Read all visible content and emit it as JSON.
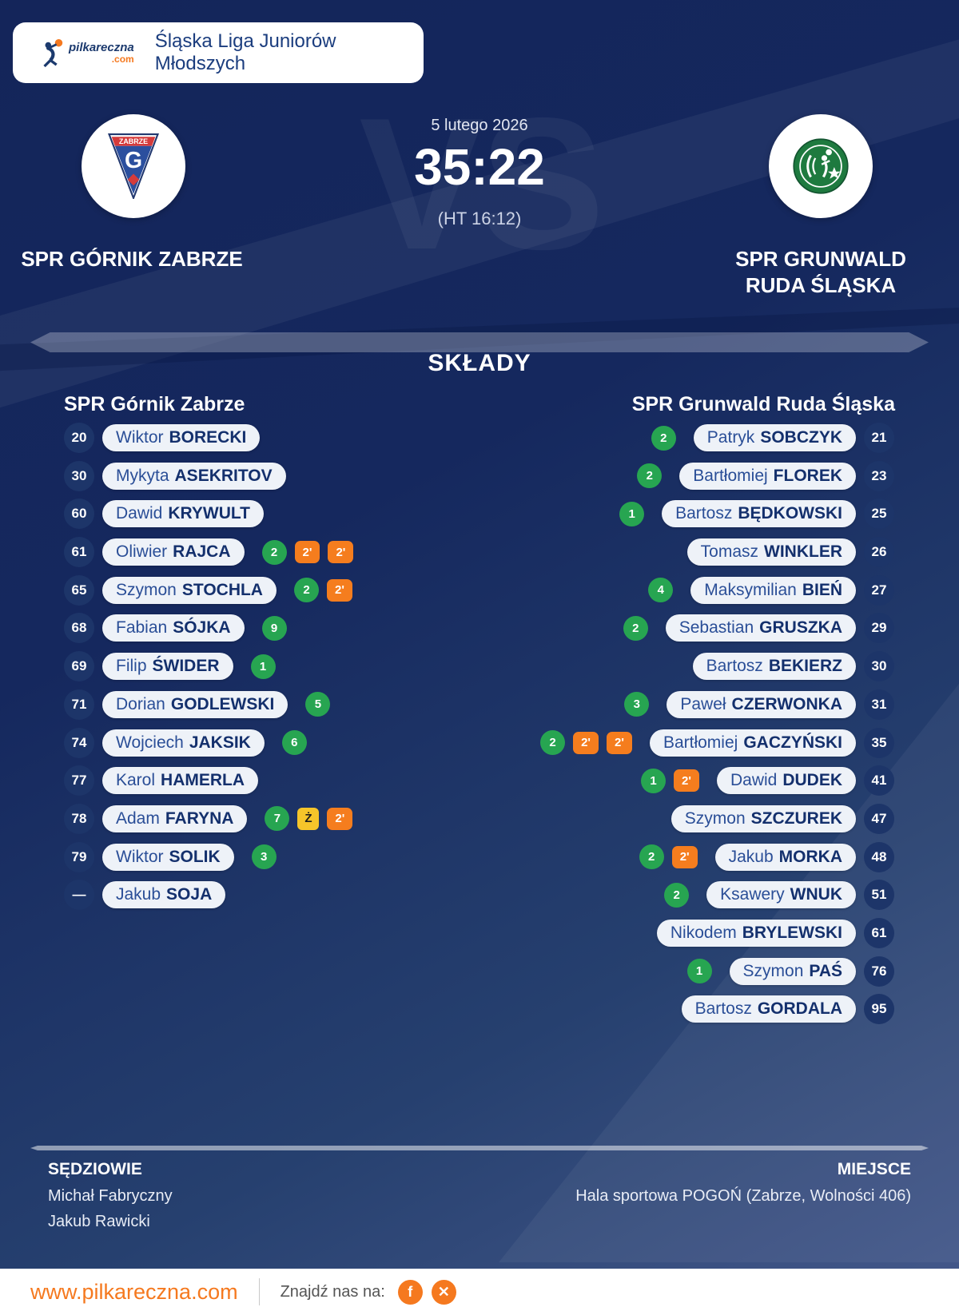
{
  "header": {
    "logo_text": "pilkareczna",
    "logo_tld": ".com",
    "league": "Śląska Liga Juniorów Młodszych"
  },
  "match": {
    "date": "5 lutego 2026",
    "score": "35:22",
    "halftime": "(HT 16:12)",
    "vs": "VS",
    "home": {
      "name": "SPR GÓRNIK ZABRZE",
      "crest_city": "ZABRZE",
      "crest_letter": "G"
    },
    "away": {
      "line1": "SPR GRUNWALD",
      "line2": "RUDA ŚLĄSKA"
    }
  },
  "lineups": {
    "title": "SKŁADY",
    "home_header": "SPR Górnik Zabrze",
    "away_header": "SPR Grunwald Ruda Śląska",
    "home": [
      {
        "num": "20",
        "first": "Wiktor",
        "last": "BORECKI",
        "badges": []
      },
      {
        "num": "30",
        "first": "Mykyta",
        "last": "ASEKRITOV",
        "badges": []
      },
      {
        "num": "60",
        "first": "Dawid",
        "last": "KRYWULT",
        "badges": []
      },
      {
        "num": "61",
        "first": "Oliwier",
        "last": "RAJCA",
        "badges": [
          {
            "type": "goal",
            "label": "2"
          },
          {
            "type": "pen",
            "label": "2'"
          },
          {
            "type": "pen",
            "label": "2'"
          }
        ]
      },
      {
        "num": "65",
        "first": "Szymon",
        "last": "STOCHLA",
        "badges": [
          {
            "type": "goal",
            "label": "2"
          },
          {
            "type": "pen",
            "label": "2'"
          }
        ]
      },
      {
        "num": "68",
        "first": "Fabian",
        "last": "SÓJKA",
        "badges": [
          {
            "type": "goal",
            "label": "9"
          }
        ]
      },
      {
        "num": "69",
        "first": "Filip",
        "last": "ŚWIDER",
        "badges": [
          {
            "type": "goal",
            "label": "1"
          }
        ]
      },
      {
        "num": "71",
        "first": "Dorian",
        "last": "GODLEWSKI",
        "badges": [
          {
            "type": "goal",
            "label": "5"
          }
        ]
      },
      {
        "num": "74",
        "first": "Wojciech",
        "last": "JAKSIK",
        "badges": [
          {
            "type": "goal",
            "label": "6"
          }
        ]
      },
      {
        "num": "77",
        "first": "Karol",
        "last": "HAMERLA",
        "badges": []
      },
      {
        "num": "78",
        "first": "Adam",
        "last": "FARYNA",
        "badges": [
          {
            "type": "goal",
            "label": "7"
          },
          {
            "type": "yellow",
            "label": "Ż"
          },
          {
            "type": "pen",
            "label": "2'"
          }
        ]
      },
      {
        "num": "79",
        "first": "Wiktor",
        "last": "SOLIK",
        "badges": [
          {
            "type": "goal",
            "label": "3"
          }
        ]
      },
      {
        "num": "—",
        "first": "Jakub",
        "last": "SOJA",
        "badges": []
      }
    ],
    "away": [
      {
        "num": "21",
        "first": "Patryk",
        "last": "SOBCZYK",
        "badges": [
          {
            "type": "goal",
            "label": "2"
          }
        ]
      },
      {
        "num": "23",
        "first": "Bartłomiej",
        "last": "FLOREK",
        "badges": [
          {
            "type": "goal",
            "label": "2"
          }
        ]
      },
      {
        "num": "25",
        "first": "Bartosz",
        "last": "BĘDKOWSKI",
        "badges": [
          {
            "type": "goal",
            "label": "1"
          }
        ]
      },
      {
        "num": "26",
        "first": "Tomasz",
        "last": "WINKLER",
        "badges": []
      },
      {
        "num": "27",
        "first": "Maksymilian",
        "last": "BIEŃ",
        "badges": [
          {
            "type": "goal",
            "label": "4"
          }
        ]
      },
      {
        "num": "29",
        "first": "Sebastian",
        "last": "GRUSZKA",
        "badges": [
          {
            "type": "goal",
            "label": "2"
          }
        ]
      },
      {
        "num": "30",
        "first": "Bartosz",
        "last": "BEKIERZ",
        "badges": []
      },
      {
        "num": "31",
        "first": "Paweł",
        "last": "CZERWONKA",
        "badges": [
          {
            "type": "goal",
            "label": "3"
          }
        ]
      },
      {
        "num": "35",
        "first": "Bartłomiej",
        "last": "GACZYŃSKI",
        "badges": [
          {
            "type": "goal",
            "label": "2"
          },
          {
            "type": "pen",
            "label": "2'"
          },
          {
            "type": "pen",
            "label": "2'"
          }
        ]
      },
      {
        "num": "41",
        "first": "Dawid",
        "last": "DUDEK",
        "badges": [
          {
            "type": "goal",
            "label": "1"
          },
          {
            "type": "pen",
            "label": "2'"
          }
        ]
      },
      {
        "num": "47",
        "first": "Szymon",
        "last": "SZCZUREK",
        "badges": []
      },
      {
        "num": "48",
        "first": "Jakub",
        "last": "MORKA",
        "badges": [
          {
            "type": "goal",
            "label": "2"
          },
          {
            "type": "pen",
            "label": "2'"
          }
        ]
      },
      {
        "num": "51",
        "first": "Ksawery",
        "last": "WNUK",
        "badges": [
          {
            "type": "goal",
            "label": "2"
          }
        ]
      },
      {
        "num": "61",
        "first": "Nikodem",
        "last": "BRYLEWSKI",
        "badges": []
      },
      {
        "num": "76",
        "first": "Szymon",
        "last": "PAŚ",
        "badges": [
          {
            "type": "goal",
            "label": "1"
          }
        ]
      },
      {
        "num": "95",
        "first": "Bartosz",
        "last": "GORDALA",
        "badges": []
      }
    ]
  },
  "info": {
    "referees_label": "SĘDZIOWIE",
    "referees": [
      "Michał Fabryczny",
      "Jakub Rawicki"
    ],
    "venue_label": "MIEJSCE",
    "venue": "Hala sportowa POGOŃ (Zabrze, Wolności 406)"
  },
  "footer": {
    "site": "www.pilkareczna.com",
    "social_label": "Znajdź nas na:",
    "icons": [
      "facebook-icon",
      "x-icon"
    ],
    "facebook_glyph": "f",
    "x_glyph": "✕"
  },
  "colors": {
    "navy_background": "#14255A",
    "accent_orange": "#F5791F",
    "goal_green": "#27A551",
    "penalty_orange": "#F57D1E",
    "card_yellow": "#F6C52A",
    "pill_background": "#EEF2F8"
  }
}
